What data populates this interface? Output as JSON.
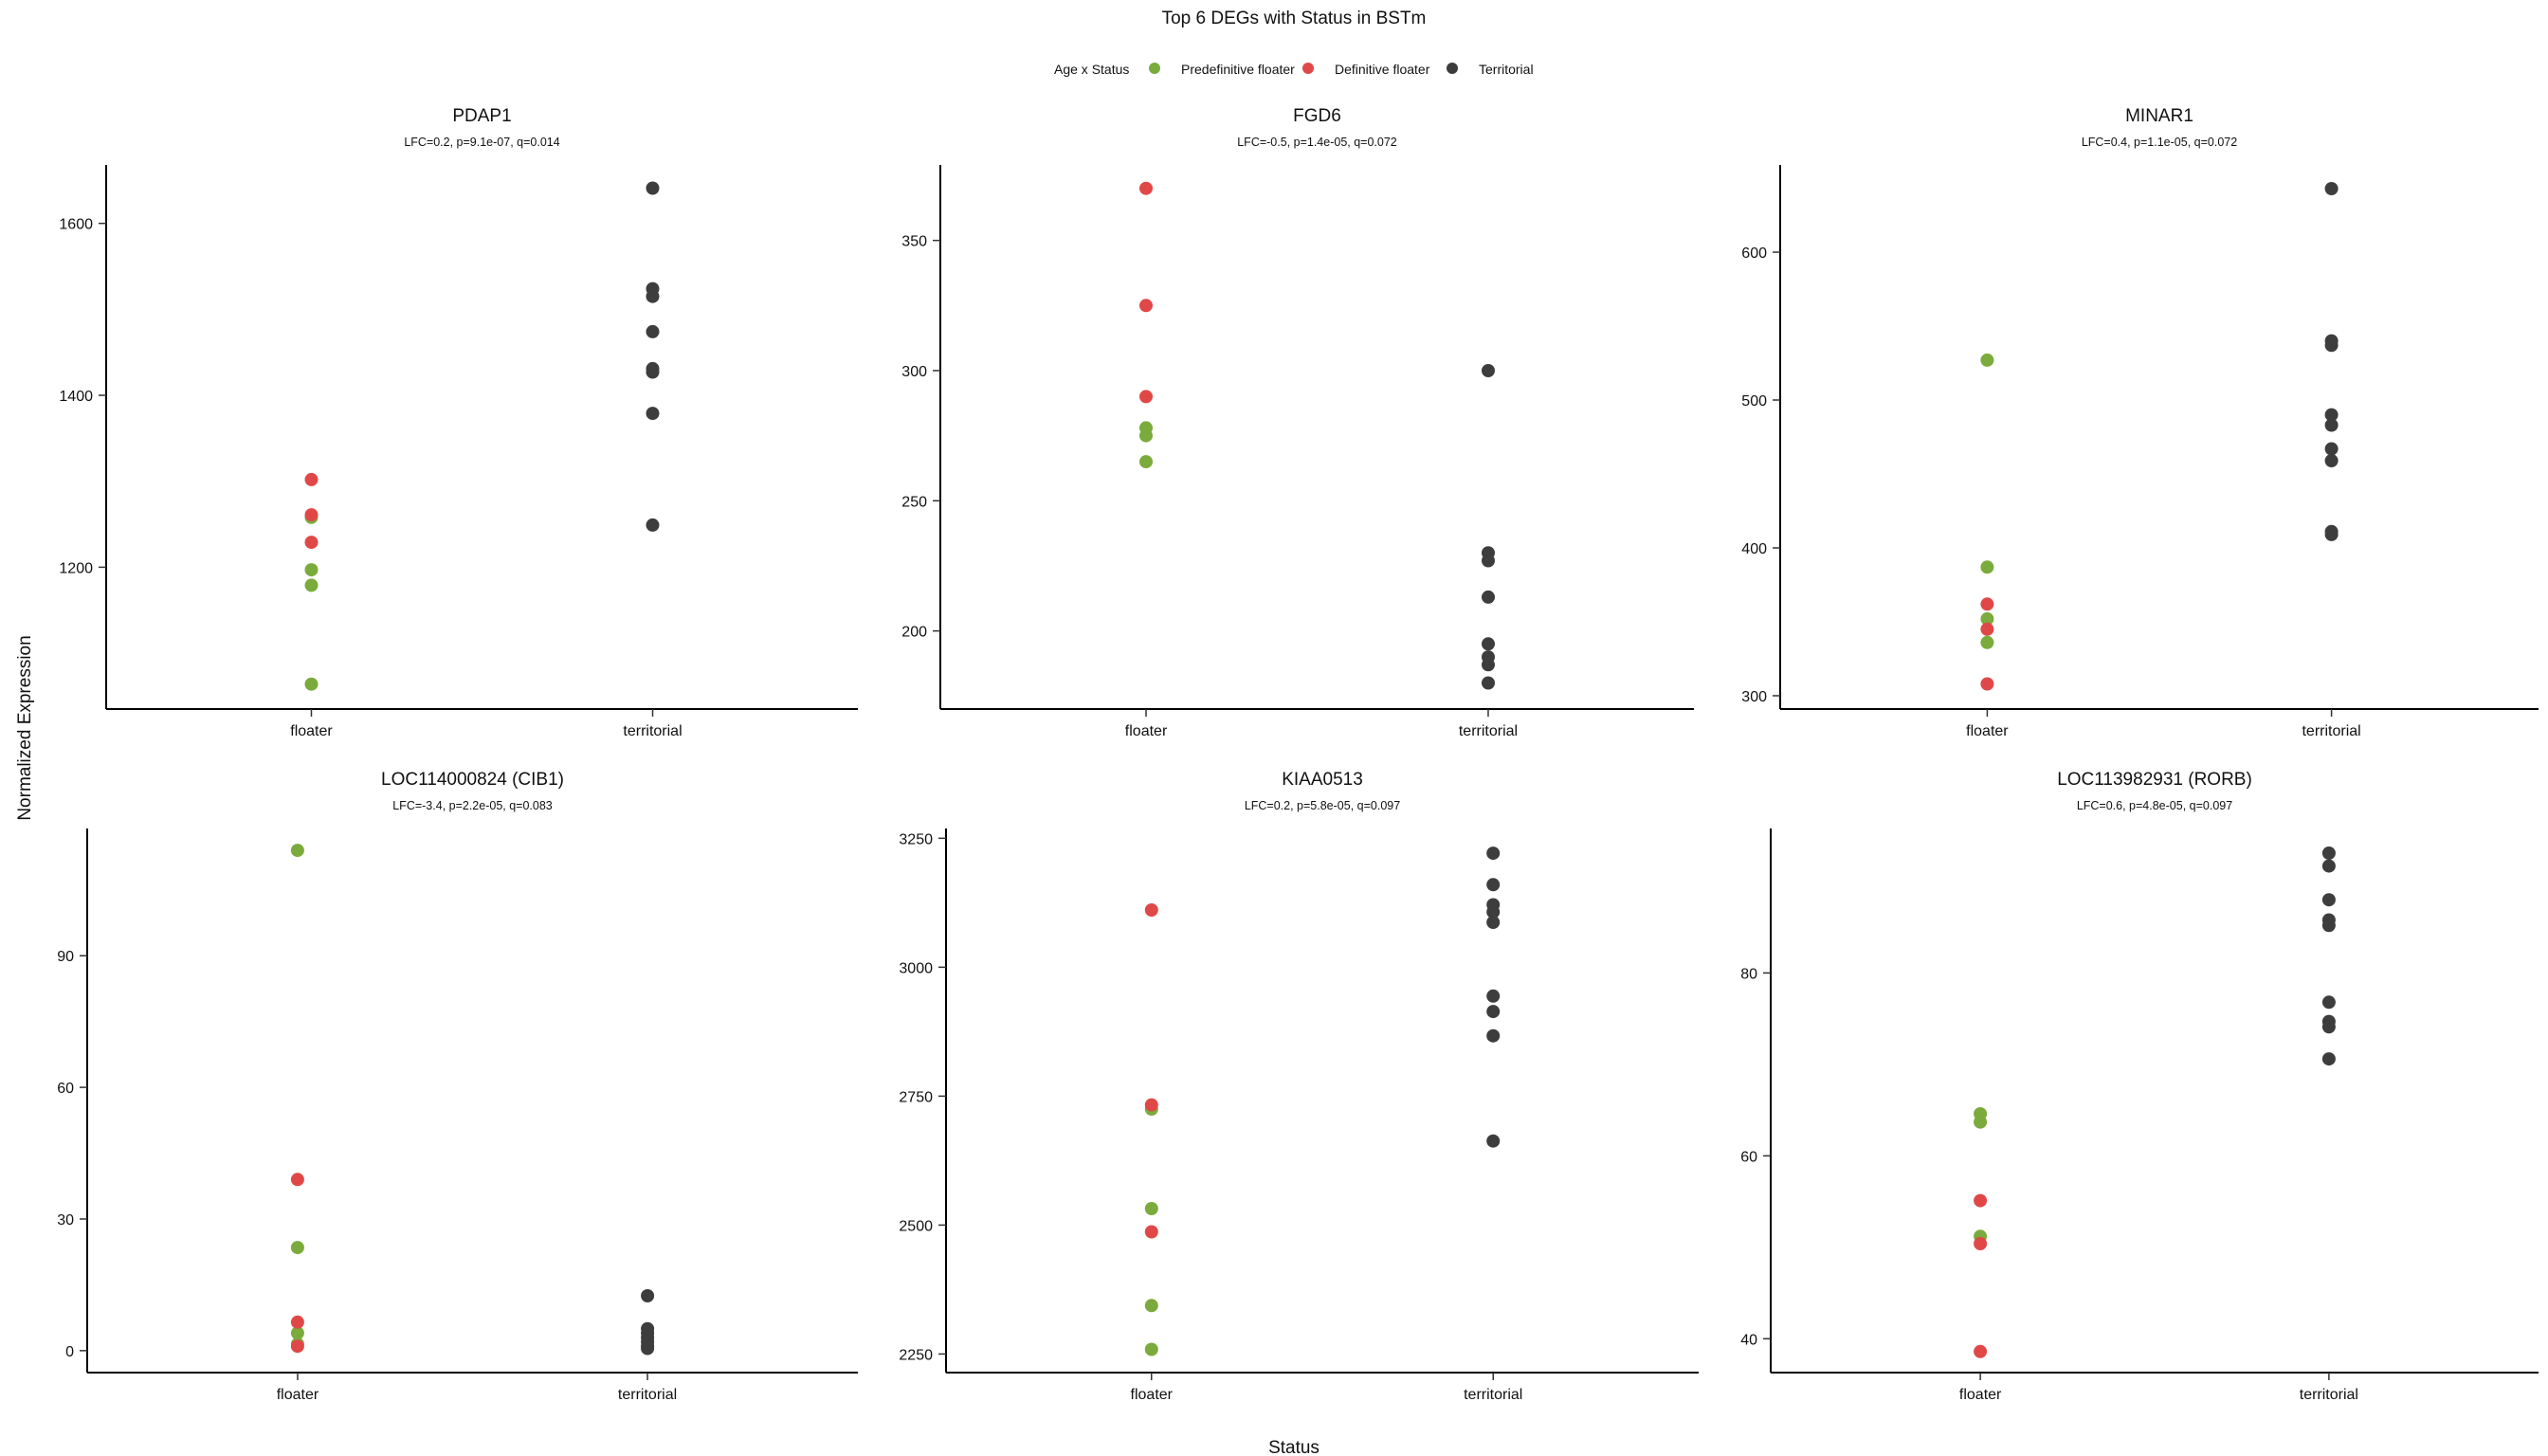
{
  "title": "Top 6 DEGs with Status in BSTm",
  "legend": {
    "title": "Age x Status",
    "items": [
      {
        "label": "Predefinitive floater",
        "color": "#7aab3c"
      },
      {
        "label": "Definitive floater",
        "color": "#e04848"
      },
      {
        "label": "Territorial",
        "color": "#3d3d3d"
      }
    ],
    "placement": "top"
  },
  "xlabel": "Status",
  "ylabel": "Normalized Expression",
  "chart_data": [
    {
      "type": "scatter",
      "title": "PDAP1",
      "subtitle": "LFC=0.2, p=9.1e-07, q=0.014",
      "categories": [
        "floater",
        "territorial"
      ],
      "yticks": [
        1200,
        1400,
        1600
      ],
      "ylim": [
        1035,
        1668
      ],
      "series": [
        {
          "name": "Predefinitive floater",
          "points": [
            [
              "floater",
              1258
            ],
            [
              "floater",
              1197
            ],
            [
              "floater",
              1179
            ],
            [
              "floater",
              1064
            ]
          ]
        },
        {
          "name": "Definitive floater",
          "points": [
            [
              "floater",
              1302
            ],
            [
              "floater",
              1261
            ],
            [
              "floater",
              1229
            ]
          ]
        },
        {
          "name": "Territorial",
          "points": [
            [
              "territorial",
              1641
            ],
            [
              "territorial",
              1524
            ],
            [
              "territorial",
              1515
            ],
            [
              "territorial",
              1474
            ],
            [
              "territorial",
              1431
            ],
            [
              "territorial",
              1427
            ],
            [
              "territorial",
              1379
            ],
            [
              "territorial",
              1249
            ]
          ]
        }
      ]
    },
    {
      "type": "scatter",
      "title": "FGD6",
      "subtitle": "LFC=-0.5, p=1.4e-05, q=0.072",
      "categories": [
        "floater",
        "territorial"
      ],
      "yticks": [
        200,
        250,
        300,
        350
      ],
      "ylim": [
        170,
        379
      ],
      "series": [
        {
          "name": "Predefinitive floater",
          "points": [
            [
              "floater",
              278
            ],
            [
              "floater",
              275
            ],
            [
              "floater",
              265
            ]
          ]
        },
        {
          "name": "Definitive floater",
          "points": [
            [
              "floater",
              370
            ],
            [
              "floater",
              325
            ],
            [
              "floater",
              290
            ]
          ]
        },
        {
          "name": "Territorial",
          "points": [
            [
              "territorial",
              300
            ],
            [
              "territorial",
              230
            ],
            [
              "territorial",
              227
            ],
            [
              "territorial",
              213
            ],
            [
              "territorial",
              195
            ],
            [
              "territorial",
              190
            ],
            [
              "territorial",
              187
            ],
            [
              "territorial",
              180
            ]
          ]
        }
      ]
    },
    {
      "type": "scatter",
      "title": "MINAR1",
      "subtitle": "LFC=0.4, p=1.1e-05, q=0.072",
      "categories": [
        "floater",
        "territorial"
      ],
      "yticks": [
        300,
        400,
        500,
        600
      ],
      "ylim": [
        291,
        659
      ],
      "series": [
        {
          "name": "Predefinitive floater",
          "points": [
            [
              "floater",
              527
            ],
            [
              "floater",
              387
            ],
            [
              "floater",
              352
            ],
            [
              "floater",
              336
            ]
          ]
        },
        {
          "name": "Definitive floater",
          "points": [
            [
              "floater",
              362
            ],
            [
              "floater",
              345
            ],
            [
              "floater",
              308
            ]
          ]
        },
        {
          "name": "Territorial",
          "points": [
            [
              "territorial",
              643
            ],
            [
              "territorial",
              540
            ],
            [
              "territorial",
              537
            ],
            [
              "territorial",
              490
            ],
            [
              "territorial",
              483
            ],
            [
              "territorial",
              467
            ],
            [
              "territorial",
              459
            ],
            [
              "territorial",
              411
            ],
            [
              "territorial",
              409
            ]
          ]
        }
      ]
    },
    {
      "type": "scatter",
      "title": "LOC114000824 (CIB1)",
      "subtitle": "LFC=-3.4, p=2.2e-05, q=0.083",
      "categories": [
        "floater",
        "territorial"
      ],
      "yticks": [
        0,
        30,
        60,
        90
      ],
      "ylim": [
        -5,
        119
      ],
      "series": [
        {
          "name": "Predefinitive floater",
          "points": [
            [
              "floater",
              114
            ],
            [
              "floater",
              23.5
            ],
            [
              "floater",
              4
            ],
            [
              "floater",
              1.5
            ]
          ]
        },
        {
          "name": "Definitive floater",
          "points": [
            [
              "floater",
              39
            ],
            [
              "floater",
              6.5
            ],
            [
              "floater",
              1
            ]
          ]
        },
        {
          "name": "Territorial",
          "points": [
            [
              "territorial",
              12.5
            ],
            [
              "territorial",
              5
            ],
            [
              "territorial",
              4
            ],
            [
              "territorial",
              3
            ],
            [
              "territorial",
              2
            ],
            [
              "territorial",
              1
            ],
            [
              "territorial",
              0.5
            ]
          ]
        }
      ]
    },
    {
      "type": "scatter",
      "title": "KIAA0513",
      "subtitle": "LFC=0.2, p=5.8e-05, q=0.097",
      "categories": [
        "floater",
        "territorial"
      ],
      "yticks": [
        2250,
        2500,
        2750,
        3000,
        3250
      ],
      "ylim": [
        2214,
        3269
      ],
      "series": [
        {
          "name": "Predefinitive floater",
          "points": [
            [
              "floater",
              2725
            ],
            [
              "floater",
              2532
            ],
            [
              "floater",
              2344
            ],
            [
              "floater",
              2259
            ]
          ]
        },
        {
          "name": "Definitive floater",
          "points": [
            [
              "floater",
              3111
            ],
            [
              "floater",
              2733
            ],
            [
              "floater",
              2487
            ]
          ]
        },
        {
          "name": "Territorial",
          "points": [
            [
              "territorial",
              3221
            ],
            [
              "territorial",
              3160
            ],
            [
              "territorial",
              3121
            ],
            [
              "territorial",
              3107
            ],
            [
              "territorial",
              3087
            ],
            [
              "territorial",
              2944
            ],
            [
              "territorial",
              2914
            ],
            [
              "territorial",
              2867
            ],
            [
              "territorial",
              2663
            ]
          ]
        }
      ]
    },
    {
      "type": "scatter",
      "title": "LOC113982931 (RORB)",
      "subtitle": "LFC=0.6, p=4.8e-05, q=0.097",
      "categories": [
        "floater",
        "territorial"
      ],
      "yticks": [
        40,
        60,
        80
      ],
      "ylim": [
        36.3,
        95.8
      ],
      "series": [
        {
          "name": "Predefinitive floater",
          "points": [
            [
              "floater",
              64.6
            ],
            [
              "floater",
              63.7
            ],
            [
              "floater",
              51.2
            ]
          ]
        },
        {
          "name": "Definitive floater",
          "points": [
            [
              "floater",
              55.1
            ],
            [
              "floater",
              50.4
            ],
            [
              "floater",
              38.6
            ]
          ]
        },
        {
          "name": "Territorial",
          "points": [
            [
              "territorial",
              93.1
            ],
            [
              "territorial",
              91.7
            ],
            [
              "territorial",
              88.0
            ],
            [
              "territorial",
              85.8
            ],
            [
              "territorial",
              85.2
            ],
            [
              "territorial",
              76.8
            ],
            [
              "territorial",
              74.7
            ],
            [
              "territorial",
              74.1
            ],
            [
              "territorial",
              70.6
            ]
          ]
        }
      ]
    }
  ]
}
